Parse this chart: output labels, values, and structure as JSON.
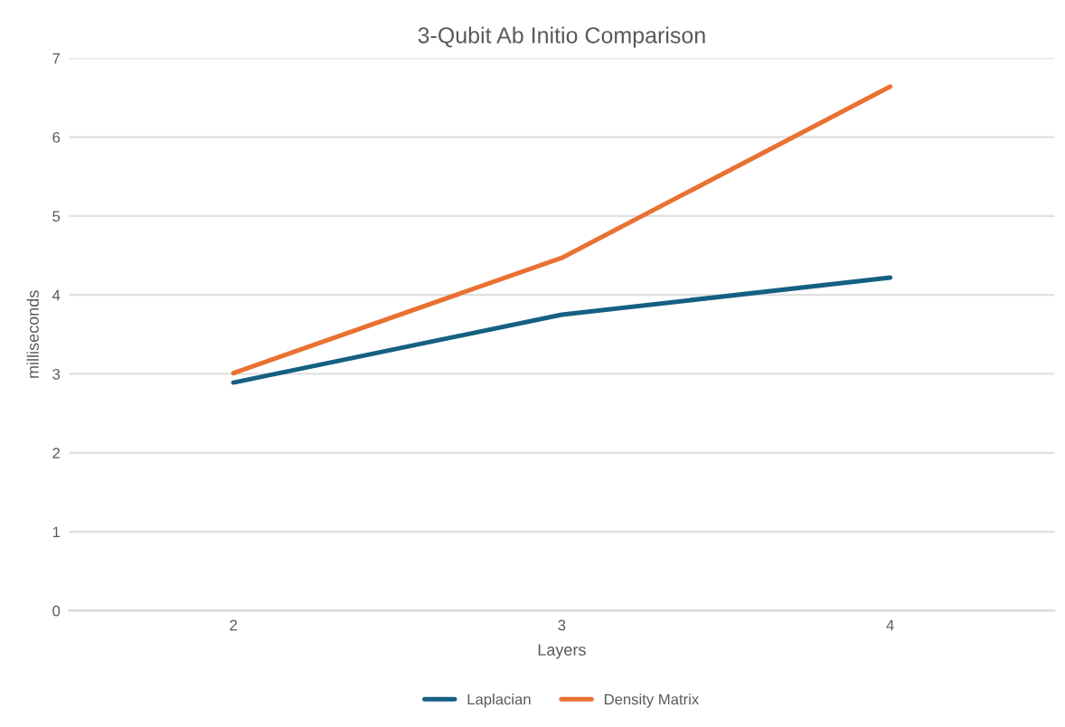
{
  "chart_data": {
    "type": "line",
    "title": "3-Qubit Ab Initio Comparison",
    "xlabel": "Layers",
    "ylabel": "milliseconds",
    "categories": [
      "2",
      "3",
      "4"
    ],
    "series": [
      {
        "name": "Laplacian",
        "color": "#156082",
        "values": [
          2.89,
          3.75,
          4.22
        ]
      },
      {
        "name": "Density Matrix",
        "color": "#e97132",
        "values": [
          3.01,
          4.47,
          6.64
        ]
      }
    ],
    "ylim": [
      0,
      7
    ],
    "yticks": [
      0,
      1,
      2,
      3,
      4,
      5,
      6,
      7
    ],
    "grid": "y",
    "legend": "bottom",
    "marker": "none",
    "line_style": "solid"
  }
}
